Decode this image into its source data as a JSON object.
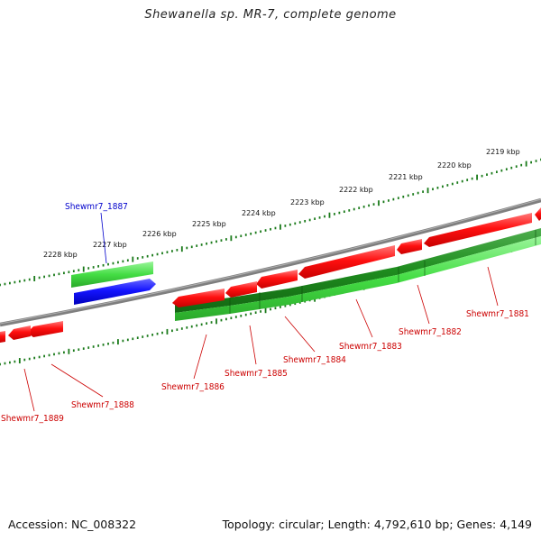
{
  "title": "Shewanella sp. MR-7, complete genome",
  "footer": {
    "accession": "Accession: NC_008322",
    "summary": "Topology: circular; Length: 4,792,610 bp; Genes: 4,149"
  },
  "scale": {
    "ticks": [
      {
        "label": "2219 kbp"
      },
      {
        "label": "2220 kbp"
      },
      {
        "label": "2221 kbp"
      },
      {
        "label": "2222 kbp"
      },
      {
        "label": "2223 kbp"
      },
      {
        "label": "2224 kbp"
      },
      {
        "label": "2225 kbp"
      },
      {
        "label": "2226 kbp"
      },
      {
        "label": "2227 kbp"
      },
      {
        "label": "2228 kbp"
      }
    ]
  },
  "genes": [
    {
      "label": "Shewmr7_1881",
      "color": "#cc0000"
    },
    {
      "label": "Shewmr7_1882",
      "color": "#cc0000"
    },
    {
      "label": "Shewmr7_1883",
      "color": "#cc0000"
    },
    {
      "label": "Shewmr7_1884",
      "color": "#cc0000"
    },
    {
      "label": "Shewmr7_1885",
      "color": "#cc0000"
    },
    {
      "label": "Shewmr7_1886",
      "color": "#cc0000"
    },
    {
      "label": "Shewmr7_1887",
      "color": "#0000cc"
    },
    {
      "label": "Shewmr7_1888",
      "color": "#cc0000"
    },
    {
      "label": "Shewmr7_1889",
      "color": "#cc0000"
    }
  ],
  "colors": {
    "backbone": "#808080",
    "tick_ring": "#1a7a1a",
    "cds_red": "#ee1111",
    "cds_blue": "#1111ee",
    "gene_green_light": "#44dd44",
    "gene_green_dark": "#1e8c1e"
  }
}
